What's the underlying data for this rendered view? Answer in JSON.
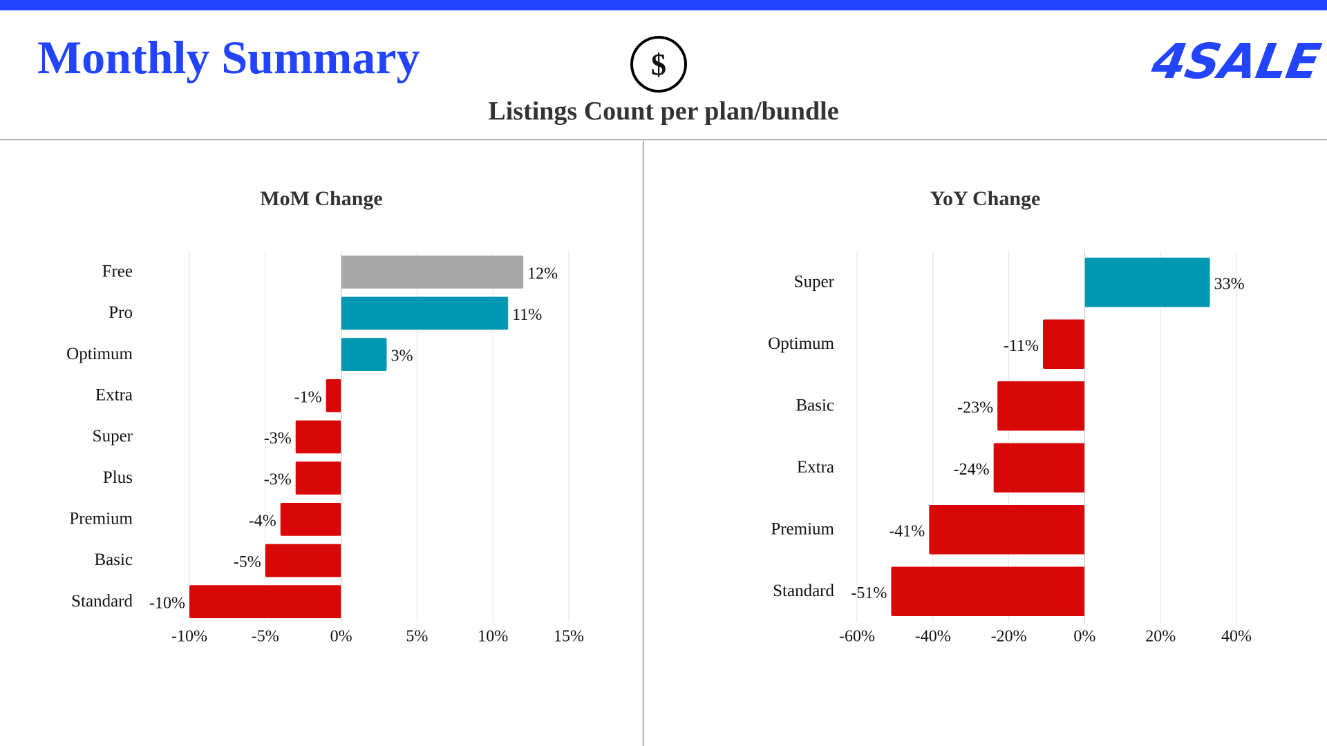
{
  "header": {
    "title": "Monthly Summary",
    "subtitle": "Listings Count per plan/bundle",
    "logo_text": "4SALE",
    "center_icon": "dollar-coin-icon"
  },
  "colors": {
    "brand": "#2244ff",
    "positive": "#0097b2",
    "negative": "#d90808",
    "neutral": "#a8a8a8"
  },
  "chart_data": [
    {
      "type": "bar",
      "orientation": "horizontal",
      "title": "MoM Change",
      "categories": [
        "Free",
        "Pro",
        "Optimum",
        "Extra",
        "Super",
        "Plus",
        "Premium",
        "Basic",
        "Standard"
      ],
      "values": [
        12,
        11,
        3,
        -1,
        -3,
        -3,
        -4,
        -5,
        -10
      ],
      "data_labels": [
        "12%",
        "11%",
        "3%",
        "-1%",
        "-3%",
        "-3%",
        "-4%",
        "-5%",
        "-10%"
      ],
      "bar_colors": [
        "#a8a8a8",
        "#0097b2",
        "#0097b2",
        "#d90808",
        "#d90808",
        "#d90808",
        "#d90808",
        "#d90808",
        "#d90808"
      ],
      "xlim": [
        -10,
        15
      ],
      "xticks": [
        -10,
        -5,
        0,
        5,
        10,
        15
      ],
      "xtick_labels": [
        "-10%",
        "-5%",
        "0%",
        "5%",
        "10%",
        "15%"
      ],
      "grid": true
    },
    {
      "type": "bar",
      "orientation": "horizontal",
      "title": "YoY Change",
      "categories": [
        "Super",
        "Optimum",
        "Basic",
        "Extra",
        "Premium",
        "Standard"
      ],
      "values": [
        33,
        -11,
        -23,
        -24,
        -41,
        -51
      ],
      "data_labels": [
        "33%",
        "-11%",
        "-23%",
        "-24%",
        "-41%",
        "-51%"
      ],
      "bar_colors": [
        "#0097b2",
        "#d90808",
        "#d90808",
        "#d90808",
        "#d90808",
        "#d90808"
      ],
      "xlim": [
        -60,
        40
      ],
      "xticks": [
        -60,
        -40,
        -20,
        0,
        20,
        40
      ],
      "xtick_labels": [
        "-60%",
        "-40%",
        "-20%",
        "0%",
        "20%",
        "40%"
      ],
      "grid": true
    }
  ]
}
